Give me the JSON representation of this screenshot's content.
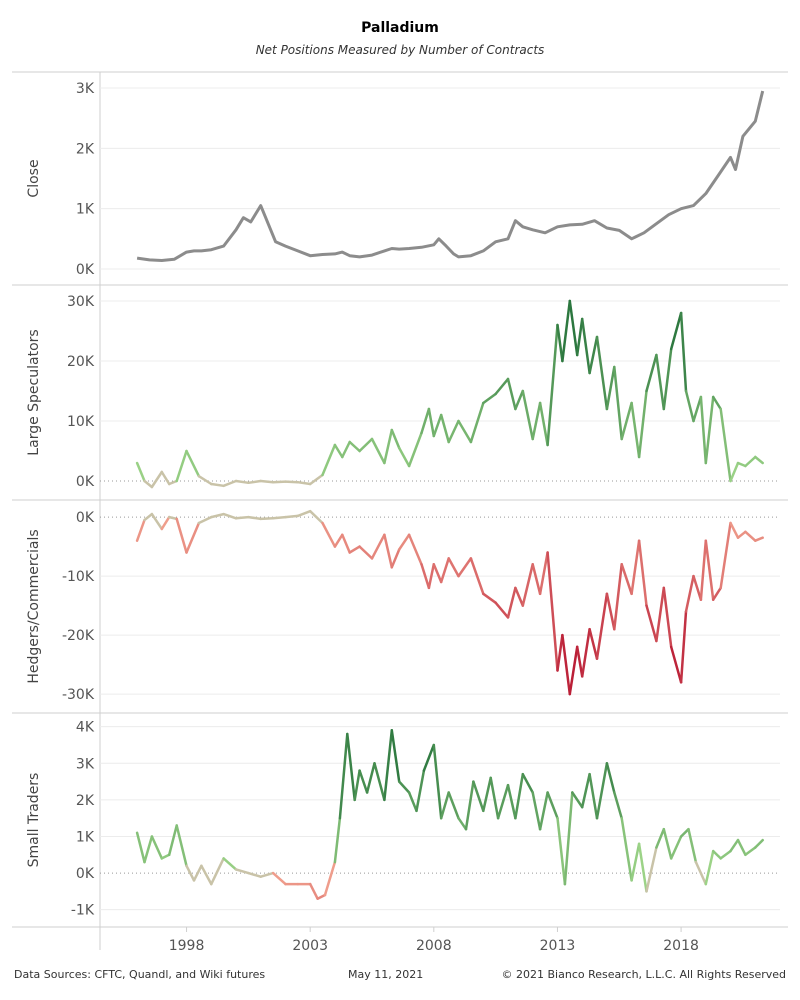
{
  "header": {
    "title": "Palladium",
    "subtitle": "Net Positions Measured by Number of Contracts"
  },
  "footer": {
    "sources": "Data Sources: CFTC, Quandl, and Wiki futures",
    "date": "May 11, 2021",
    "copyright": "© 2021 Bianco Research, L.L.C. All Rights Reserved"
  },
  "chart_data": {
    "type": "line",
    "x_axis": {
      "label": "",
      "range": [
        1994.5,
        2022.0
      ],
      "ticks": [
        1998,
        2003,
        2008,
        2013,
        2018
      ],
      "tick_labels": [
        "1998",
        "2003",
        "2008",
        "2013",
        "2018"
      ]
    },
    "colors": {
      "close": "#8c8c8c",
      "positive_light": "#a3d98c",
      "positive_dark": "#1d6b35",
      "negative_light": "#f2a591",
      "negative_dark": "#b5112e",
      "neutral": "#c9c3a8",
      "grid": "#ececec",
      "zero_line": "#999999"
    },
    "panels": [
      {
        "id": "close",
        "ylabel": "Close",
        "ylim": [
          -100,
          3100
        ],
        "yticks": [
          0,
          1000,
          2000,
          3000
        ],
        "ytick_labels": [
          "0K",
          "1K",
          "2K",
          "3K"
        ],
        "color_mode": "solid",
        "x": [
          1996.0,
          1996.5,
          1997.0,
          1997.5,
          1998.0,
          1998.3,
          1998.6,
          1999.0,
          1999.5,
          2000.0,
          2000.3,
          2000.6,
          2001.0,
          2001.2,
          2001.6,
          2002.0,
          2002.5,
          2003.0,
          2003.5,
          2004.0,
          2004.3,
          2004.6,
          2005.0,
          2005.5,
          2006.0,
          2006.3,
          2006.6,
          2007.0,
          2007.5,
          2008.0,
          2008.2,
          2008.5,
          2008.8,
          2009.0,
          2009.5,
          2010.0,
          2010.5,
          2011.0,
          2011.3,
          2011.6,
          2012.0,
          2012.5,
          2013.0,
          2013.5,
          2014.0,
          2014.5,
          2015.0,
          2015.5,
          2016.0,
          2016.5,
          2017.0,
          2017.5,
          2018.0,
          2018.5,
          2019.0,
          2019.5,
          2020.0,
          2020.2,
          2020.5,
          2021.0,
          2021.3
        ],
        "y": [
          180,
          150,
          140,
          160,
          280,
          300,
          300,
          320,
          380,
          650,
          850,
          780,
          1050,
          850,
          450,
          380,
          300,
          220,
          240,
          250,
          280,
          220,
          200,
          230,
          300,
          340,
          330,
          340,
          360,
          400,
          500,
          380,
          250,
          200,
          220,
          300,
          450,
          500,
          800,
          700,
          650,
          600,
          700,
          730,
          740,
          800,
          680,
          640,
          500,
          600,
          750,
          900,
          1000,
          1050,
          1250,
          1550,
          1850,
          1650,
          2200,
          2450,
          2950
        ]
      },
      {
        "id": "large_speculators",
        "ylabel": "Large Speculators",
        "ylim": [
          -1500,
          31000
        ],
        "yticks": [
          0,
          10000,
          20000,
          30000
        ],
        "ytick_labels": [
          "0K",
          "10K",
          "20K",
          "30K"
        ],
        "color_mode": "signed",
        "color_max": 29000,
        "x": [
          1996.0,
          1996.3,
          1996.6,
          1997.0,
          1997.3,
          1997.6,
          1998.0,
          1998.5,
          1999.0,
          1999.5,
          2000.0,
          2000.5,
          2001.0,
          2001.5,
          2002.0,
          2002.5,
          2003.0,
          2003.5,
          2004.0,
          2004.3,
          2004.6,
          2005.0,
          2005.5,
          2006.0,
          2006.3,
          2006.6,
          2007.0,
          2007.5,
          2007.8,
          2008.0,
          2008.3,
          2008.6,
          2009.0,
          2009.5,
          2010.0,
          2010.5,
          2011.0,
          2011.3,
          2011.6,
          2012.0,
          2012.3,
          2012.6,
          2013.0,
          2013.2,
          2013.5,
          2013.8,
          2014.0,
          2014.3,
          2014.6,
          2015.0,
          2015.3,
          2015.6,
          2016.0,
          2016.3,
          2016.6,
          2017.0,
          2017.3,
          2017.6,
          2018.0,
          2018.2,
          2018.5,
          2018.8,
          2019.0,
          2019.3,
          2019.6,
          2020.0,
          2020.3,
          2020.6,
          2021.0,
          2021.3
        ],
        "y": [
          3000,
          0,
          -1000,
          1500,
          -500,
          0,
          5000,
          800,
          -500,
          -800,
          0,
          -300,
          0,
          -200,
          -100,
          -200,
          -500,
          1000,
          6000,
          4000,
          6500,
          5000,
          7000,
          3000,
          8500,
          5500,
          2500,
          8000,
          12000,
          7500,
          11000,
          6500,
          10000,
          6500,
          13000,
          14500,
          17000,
          12000,
          15000,
          7000,
          13000,
          6000,
          26000,
          20000,
          30000,
          21000,
          27000,
          18000,
          24000,
          12000,
          19000,
          7000,
          13000,
          4000,
          15000,
          21000,
          12000,
          22000,
          28000,
          15000,
          10000,
          14000,
          3000,
          14000,
          12000,
          0,
          3000,
          2500,
          4000,
          3000
        ]
      },
      {
        "id": "hedgers_commercials",
        "ylabel": "Hedgers/Commercials",
        "ylim": [
          -31500,
          1200
        ],
        "yticks": [
          0,
          -10000,
          -20000,
          -30000
        ],
        "ytick_labels": [
          "0K",
          "-10K",
          "-20K",
          "-30K"
        ],
        "color_mode": "signed",
        "color_max": 29000,
        "x": [
          1996.0,
          1996.3,
          1996.6,
          1997.0,
          1997.3,
          1997.6,
          1998.0,
          1998.5,
          1999.0,
          1999.5,
          2000.0,
          2000.5,
          2001.0,
          2001.5,
          2002.0,
          2002.5,
          2003.0,
          2003.5,
          2004.0,
          2004.3,
          2004.6,
          2005.0,
          2005.5,
          2006.0,
          2006.3,
          2006.6,
          2007.0,
          2007.5,
          2007.8,
          2008.0,
          2008.3,
          2008.6,
          2009.0,
          2009.5,
          2010.0,
          2010.5,
          2011.0,
          2011.3,
          2011.6,
          2012.0,
          2012.3,
          2012.6,
          2013.0,
          2013.2,
          2013.5,
          2013.8,
          2014.0,
          2014.3,
          2014.6,
          2015.0,
          2015.3,
          2015.6,
          2016.0,
          2016.3,
          2016.6,
          2017.0,
          2017.3,
          2017.6,
          2018.0,
          2018.2,
          2018.5,
          2018.8,
          2019.0,
          2019.3,
          2019.6,
          2020.0,
          2020.3,
          2020.6,
          2021.0,
          2021.3
        ],
        "y": [
          -4000,
          -500,
          500,
          -2000,
          0,
          -300,
          -6000,
          -1000,
          0,
          500,
          -200,
          0,
          -300,
          -200,
          0,
          200,
          1000,
          -1000,
          -5000,
          -3000,
          -6000,
          -5000,
          -7000,
          -3000,
          -8500,
          -5500,
          -3000,
          -8000,
          -12000,
          -8000,
          -11000,
          -7000,
          -10000,
          -7000,
          -13000,
          -14500,
          -17000,
          -12000,
          -15000,
          -8000,
          -13000,
          -6000,
          -26000,
          -20000,
          -30000,
          -22000,
          -27000,
          -19000,
          -24000,
          -13000,
          -19000,
          -8000,
          -13000,
          -4000,
          -15000,
          -21000,
          -12000,
          -22000,
          -28000,
          -16000,
          -10000,
          -14000,
          -4000,
          -14000,
          -12000,
          -1000,
          -3500,
          -2500,
          -4000,
          -3500
        ]
      },
      {
        "id": "small_traders",
        "ylabel": "Small Traders",
        "ylim": [
          -1200,
          4100
        ],
        "yticks": [
          -1000,
          0,
          1000,
          2000,
          3000,
          4000
        ],
        "ytick_labels": [
          "-1K",
          "0K",
          "1K",
          "2K",
          "3K",
          "4K"
        ],
        "color_mode": "signed",
        "color_max": 3800,
        "x": [
          1996.0,
          1996.3,
          1996.6,
          1997.0,
          1997.3,
          1997.6,
          1998.0,
          1998.3,
          1998.6,
          1999.0,
          1999.5,
          2000.0,
          2000.5,
          2001.0,
          2001.5,
          2002.0,
          2002.5,
          2003.0,
          2003.3,
          2003.6,
          2004.0,
          2004.2,
          2004.5,
          2004.8,
          2005.0,
          2005.3,
          2005.6,
          2006.0,
          2006.3,
          2006.6,
          2007.0,
          2007.3,
          2007.6,
          2008.0,
          2008.3,
          2008.6,
          2009.0,
          2009.3,
          2009.6,
          2010.0,
          2010.3,
          2010.6,
          2011.0,
          2011.3,
          2011.6,
          2012.0,
          2012.3,
          2012.6,
          2013.0,
          2013.3,
          2013.6,
          2014.0,
          2014.3,
          2014.6,
          2015.0,
          2015.3,
          2015.6,
          2016.0,
          2016.3,
          2016.6,
          2017.0,
          2017.3,
          2017.6,
          2018.0,
          2018.3,
          2018.6,
          2019.0,
          2019.3,
          2019.6,
          2020.0,
          2020.3,
          2020.6,
          2021.0,
          2021.3
        ],
        "y": [
          1100,
          300,
          1000,
          400,
          500,
          1300,
          200,
          -200,
          200,
          -300,
          400,
          100,
          0,
          -100,
          0,
          -300,
          -300,
          -300,
          -700,
          -600,
          300,
          1500,
          3800,
          2000,
          2800,
          2200,
          3000,
          2000,
          3900,
          2500,
          2200,
          1700,
          2800,
          3500,
          1500,
          2200,
          1500,
          1200,
          2500,
          1700,
          2600,
          1500,
          2400,
          1500,
          2700,
          2200,
          1200,
          2200,
          1500,
          -300,
          2200,
          1800,
          2700,
          1500,
          3000,
          2200,
          1500,
          -200,
          800,
          -500,
          700,
          1200,
          400,
          1000,
          1200,
          300,
          -300,
          600,
          400,
          600,
          900,
          500,
          700,
          900
        ]
      }
    ]
  }
}
